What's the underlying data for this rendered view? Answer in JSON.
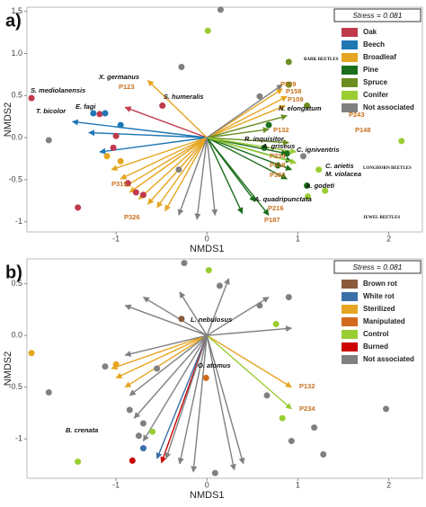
{
  "chart_data": [
    {
      "type": "biplot",
      "title": "a)",
      "xlabel": "NMDS1",
      "ylabel": "NMDS2",
      "stress": "Stress = 0.081",
      "xlim": [
        -1.98,
        2.37
      ],
      "ylim": [
        -1.12,
        1.55
      ],
      "xticks": [
        -1,
        0,
        1,
        2
      ],
      "yticks": [
        -1,
        -0.5,
        {
          "value": 0,
          "label": "0.0"
        },
        0.5,
        {
          "value": 1,
          "label": "1.0"
        },
        1.5
      ],
      "grid": false,
      "legend": "upper right",
      "series": [
        {
          "name": "Oak",
          "color": "#c0394b",
          "points": {
            "x": [
              -1.93,
              -1.18,
              -1.0,
              -1.03,
              -1.42,
              -0.87,
              -0.78,
              -0.7,
              -0.49
            ],
            "y": [
              0.47,
              0.28,
              0.02,
              -0.12,
              -0.83,
              -0.54,
              -0.65,
              -0.68,
              0.38
            ]
          },
          "arrows": {
            "x": [
              -0.9
            ],
            "y": [
              0.36
            ]
          }
        },
        {
          "name": "Beech",
          "color": "#1f77b4",
          "points": {
            "x": [
              -1.25,
              -1.12,
              -0.95
            ],
            "y": [
              0.29,
              0.29,
              0.15
            ]
          },
          "arrows": {
            "x": [
              -1.48,
              -1.3,
              -1.18
            ],
            "y": [
              0.19,
              0.06,
              -0.17
            ]
          }
        },
        {
          "name": "Broadleaf",
          "color": "#e6a520",
          "points": {
            "x": [
              -1.1,
              -0.95
            ],
            "y": [
              -0.22,
              -0.28
            ]
          },
          "arrows": {
            "x": [
              -1.05,
              -0.95,
              -0.9,
              -0.85,
              -0.75,
              -0.65,
              -0.55,
              -0.46,
              -0.65,
              0.83,
              0.88,
              0.86
            ],
            "y": [
              -0.38,
              -0.49,
              -0.58,
              -0.65,
              -0.73,
              -0.79,
              -0.83,
              -0.87,
              0.68,
              0.58,
              0.49,
              0.38
            ]
          }
        },
        {
          "name": "Pine",
          "color": "#1b6e1b",
          "points": {
            "x": [
              0.68,
              0.88,
              0.63,
              0.78,
              1.1
            ],
            "y": [
              0.15,
              -0.19,
              -0.12,
              -0.33,
              -0.57
            ]
          },
          "arrows": {
            "x": [
              0.88,
              0.93,
              0.93,
              0.88,
              0.68,
              0.39,
              0.53
            ],
            "y": [
              -0.19,
              -0.28,
              -0.38,
              -0.49,
              -0.92,
              -0.9,
              -0.76
            ]
          }
        },
        {
          "name": "Spruce",
          "color": "#6b8e23",
          "points": {
            "x": [
              0.9,
              0.9,
              1.1
            ],
            "y": [
              0.9,
              0.63,
              0.38
            ]
          },
          "arrows": {
            "x": [
              0.88,
              0.9,
              0.68
            ],
            "y": [
              0.26,
              -0.06,
              0.1
            ]
          }
        },
        {
          "name": "Conifer",
          "color": "#9acd32",
          "points": {
            "x": [
              0.01,
              2.14,
              1.23,
              1.3,
              1.11
            ],
            "y": [
              1.27,
              -0.04,
              -0.38,
              -0.63,
              -0.7
            ]
          },
          "arrows": {
            "x": [
              0.98,
              0.98
            ],
            "y": [
              -0.17,
              -0.3
            ]
          }
        },
        {
          "name": "Not associated",
          "color": "#808080",
          "points": {
            "x": [
              0.15,
              -0.28,
              -1.74,
              1.06,
              0.58,
              -0.31
            ],
            "y": [
              1.52,
              0.84,
              -0.03,
              -0.22,
              0.49,
              -0.38
            ]
          },
          "arrows": {
            "x": [
              -0.31,
              0.09,
              -0.11,
              0.83
            ],
            "y": [
              -0.92,
              -0.92,
              -0.97,
              0.63
            ]
          }
        }
      ],
      "annotations": [
        "S. mediolanensis",
        "X. germanus",
        "P123",
        "S. humeralis",
        "T. bicolor",
        "E. fagi",
        "P315",
        "P326",
        "BARK BEETLES",
        "P229",
        "P158",
        "P109",
        "N. elongatum",
        "P243",
        "P148",
        "R. inquisitor",
        "P132",
        "A. griseus",
        "C. igniventris",
        "P234",
        "P318",
        "C. arietis",
        "P380",
        "M. violacea",
        "A. godeti",
        "LONGHORN BEETLES",
        "A. quadripunctata",
        "P216",
        "P187",
        "JEWEL BEETLES"
      ]
    },
    {
      "type": "biplot",
      "title": "b)",
      "xlabel": "NMDS1",
      "ylabel": "NMDS2",
      "stress": "Stress = 0.081",
      "xlim": [
        -1.98,
        2.37
      ],
      "ylim": [
        -1.38,
        0.74
      ],
      "xticks": [
        -1,
        0,
        1,
        2
      ],
      "yticks": [
        -1,
        -0.5,
        {
          "value": 0,
          "label": "0.0"
        },
        0.5
      ],
      "grid": false,
      "legend": "upper right",
      "series": [
        {
          "name": "Brown rot",
          "color": "#8b5a3c",
          "points": {
            "x": [
              -0.28
            ],
            "y": [
              0.16
            ]
          }
        },
        {
          "name": "White rot",
          "color": "#3a6fa8",
          "points": {
            "x": [
              -0.7
            ],
            "y": [
              -1.09
            ]
          },
          "arrows": {
            "x": [
              -0.55
            ],
            "y": [
              -1.19
            ]
          }
        },
        {
          "name": "Sterilized",
          "color": "#e6a520",
          "points": {
            "x": [
              -1.93,
              -1.0
            ],
            "y": [
              -0.17,
              -0.28
            ]
          },
          "arrows": {
            "x": [
              -1.05,
              -1.0,
              -0.9,
              0.93
            ],
            "y": [
              -0.32,
              -0.41,
              -0.5,
              -0.5
            ]
          }
        },
        {
          "name": "Manipulated",
          "color": "#d2691e",
          "points": {
            "x": [
              -0.01
            ],
            "y": [
              -0.41
            ]
          }
        },
        {
          "name": "Control",
          "color": "#9acd32",
          "points": {
            "x": [
              0.02,
              0.76,
              -1.42,
              0.83,
              -0.6
            ],
            "y": [
              0.63,
              0.11,
              -1.22,
              -0.8,
              -0.93
            ]
          },
          "arrows": {
            "x": [
              0.93
            ],
            "y": [
              -0.71
            ]
          }
        },
        {
          "name": "Burned",
          "color": "#cc0000",
          "points": {
            "x": [
              -0.82
            ],
            "y": [
              -1.21
            ]
          },
          "arrows": {
            "x": [
              -0.5
            ],
            "y": [
              -1.23
            ]
          }
        },
        {
          "name": "Not associated",
          "color": "#808080",
          "points": {
            "x": [
              -0.25,
              0.14,
              0.58,
              0.9,
              -1.12,
              -0.55,
              -1.74,
              1.18,
              0.93,
              0.66,
              0.09,
              1.97,
              1.28,
              -0.75,
              -0.7,
              -0.85
            ],
            "y": [
              0.7,
              0.48,
              0.29,
              0.37,
              -0.3,
              -0.32,
              -0.55,
              -0.89,
              -1.02,
              -0.58,
              -1.33,
              -0.71,
              -1.15,
              -0.97,
              -0.85,
              -0.72
            ]
          },
          "arrows": {
            "x": [
              -0.9,
              -0.7,
              -0.3,
              0.24,
              0.68,
              0.93,
              -0.9,
              -0.85,
              -0.8,
              -0.7,
              -0.45,
              -0.3,
              -0.15,
              0.3,
              0.4
            ],
            "y": [
              0.29,
              0.37,
              0.42,
              0.55,
              0.37,
              0.07,
              -0.19,
              -0.58,
              -0.8,
              -1.02,
              -1.19,
              -1.24,
              -1.32,
              -1.3,
              -1.24
            ]
          }
        }
      ],
      "annotations": [
        "L. nebulosus",
        "O. atomus",
        "P132",
        "P234",
        "B. crenata"
      ]
    }
  ]
}
